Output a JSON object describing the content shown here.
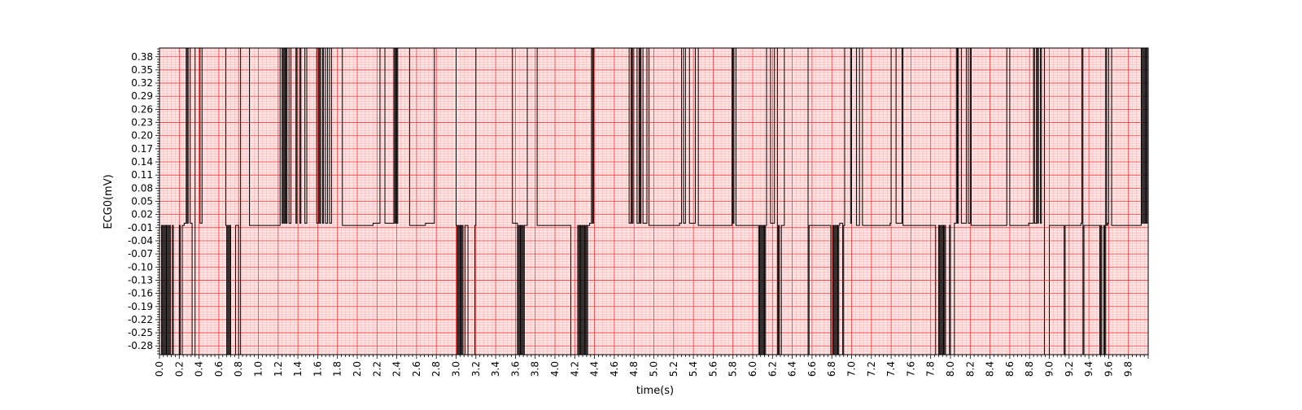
{
  "chart_data": {
    "type": "line",
    "title": "",
    "xlabel": "time(s)",
    "ylabel": "ECG0(mV)",
    "xlim": [
      0,
      10
    ],
    "ylim": [
      -0.3,
      0.4
    ],
    "grid": true,
    "grid_color_major": "#ff3333",
    "grid_color_minor": "#ffb0b0",
    "background": "#ffe6e6",
    "line_color": "#000000",
    "x_ticks": [
      "0.0",
      "0.2",
      "0.4",
      "0.6",
      "0.8",
      "1.0",
      "1.2",
      "1.4",
      "1.6",
      "1.8",
      "2.0",
      "2.2",
      "2.4",
      "2.6",
      "2.8",
      "3.0",
      "3.2",
      "3.4",
      "3.6",
      "3.8",
      "4.0",
      "4.2",
      "4.4",
      "4.6",
      "4.8",
      "5.0",
      "5.2",
      "5.4",
      "5.6",
      "5.8",
      "6.0",
      "6.2",
      "6.4",
      "6.6",
      "6.8",
      "7.0",
      "7.2",
      "7.4",
      "7.6",
      "7.8",
      "8.0",
      "8.2",
      "8.4",
      "8.6",
      "8.8",
      "9.0",
      "9.2",
      "9.4",
      "9.6",
      "9.8"
    ],
    "y_ticks": [
      "-0.28",
      "-0.25",
      "-0.22",
      "-0.19",
      "-0.16",
      "-0.13",
      "-0.10",
      "-0.07",
      "-0.04",
      "-0.01",
      "0.02",
      "0.05",
      "0.08",
      "0.11",
      "0.14",
      "0.17",
      "0.20",
      "0.23",
      "0.26",
      "0.29",
      "0.32",
      "0.35",
      "0.38"
    ],
    "levels": {
      "high": 0.4,
      "mid_high": 0.0,
      "mid_low": -0.005,
      "low": -0.3
    },
    "series": [
      {
        "segments": [
          [
            0.0,
            "low"
          ],
          [
            0.02,
            "mid_low"
          ],
          [
            0.03,
            "low"
          ],
          [
            0.04,
            "mid_low"
          ],
          [
            0.05,
            "low"
          ],
          [
            0.06,
            "mid_low"
          ],
          [
            0.07,
            "low"
          ],
          [
            0.08,
            "mid_low"
          ],
          [
            0.09,
            "low"
          ],
          [
            0.1,
            "mid_low"
          ],
          [
            0.11,
            "low"
          ],
          [
            0.13,
            "mid_low"
          ],
          [
            0.14,
            "low"
          ],
          [
            0.2,
            "mid_low"
          ],
          [
            0.21,
            "low"
          ],
          [
            0.23,
            "mid_low"
          ],
          [
            0.25,
            "mid_high"
          ],
          [
            0.27,
            "high"
          ],
          [
            0.28,
            "mid_high"
          ],
          [
            0.29,
            "high"
          ],
          [
            0.31,
            "mid_high"
          ],
          [
            0.33,
            "low"
          ],
          [
            0.36,
            "high"
          ],
          [
            0.41,
            "mid_high"
          ],
          [
            0.43,
            "high"
          ],
          [
            0.67,
            "mid_low"
          ],
          [
            0.68,
            "low"
          ],
          [
            0.69,
            "mid_low"
          ],
          [
            0.7,
            "low"
          ],
          [
            0.71,
            "mid_low"
          ],
          [
            0.72,
            "low"
          ],
          [
            0.77,
            "mid_low"
          ],
          [
            0.8,
            "low"
          ],
          [
            0.82,
            "high"
          ],
          [
            0.91,
            "mid_low"
          ],
          [
            1.22,
            "high"
          ],
          [
            1.24,
            "mid_high"
          ],
          [
            1.25,
            "high"
          ],
          [
            1.26,
            "mid_high"
          ],
          [
            1.27,
            "high"
          ],
          [
            1.28,
            "mid_high"
          ],
          [
            1.29,
            "high"
          ],
          [
            1.31,
            "mid_high"
          ],
          [
            1.33,
            "high"
          ],
          [
            1.38,
            "mid_high"
          ],
          [
            1.39,
            "high"
          ],
          [
            1.42,
            "mid_high"
          ],
          [
            1.43,
            "high"
          ],
          [
            1.47,
            "mid_high"
          ],
          [
            1.49,
            "high"
          ],
          [
            1.59,
            "mid_high"
          ],
          [
            1.61,
            "high"
          ],
          [
            1.62,
            "mid_high"
          ],
          [
            1.63,
            "high"
          ],
          [
            1.65,
            "mid_high"
          ],
          [
            1.66,
            "high"
          ],
          [
            1.68,
            "mid_high"
          ],
          [
            1.7,
            "high"
          ],
          [
            1.72,
            "mid_high"
          ],
          [
            1.74,
            "high"
          ],
          [
            1.85,
            "mid_low"
          ],
          [
            2.16,
            "mid_high"
          ],
          [
            2.23,
            "high"
          ],
          [
            2.28,
            "mid_high"
          ],
          [
            2.37,
            "high"
          ],
          [
            2.38,
            "mid_high"
          ],
          [
            2.39,
            "high"
          ],
          [
            2.4,
            "mid_high"
          ],
          [
            2.41,
            "high"
          ],
          [
            2.53,
            "mid_low"
          ],
          [
            2.69,
            "mid_high"
          ],
          [
            2.78,
            "high"
          ],
          [
            3.0,
            "mid_low"
          ],
          [
            3.01,
            "low"
          ],
          [
            3.02,
            "mid_low"
          ],
          [
            3.03,
            "low"
          ],
          [
            3.04,
            "mid_low"
          ],
          [
            3.05,
            "low"
          ],
          [
            3.06,
            "mid_low"
          ],
          [
            3.07,
            "low"
          ],
          [
            3.09,
            "mid_low"
          ],
          [
            3.12,
            "low"
          ],
          [
            3.19,
            "mid_low"
          ],
          [
            3.2,
            "high"
          ],
          [
            3.57,
            "mid_high"
          ],
          [
            3.62,
            "low"
          ],
          [
            3.63,
            "mid_low"
          ],
          [
            3.64,
            "low"
          ],
          [
            3.65,
            "mid_low"
          ],
          [
            3.66,
            "low"
          ],
          [
            3.67,
            "mid_low"
          ],
          [
            3.68,
            "low"
          ],
          [
            3.69,
            "mid_low"
          ],
          [
            3.72,
            "high"
          ],
          [
            3.82,
            "mid_low"
          ],
          [
            4.16,
            "low"
          ],
          [
            4.23,
            "mid_low"
          ],
          [
            4.24,
            "low"
          ],
          [
            4.25,
            "mid_low"
          ],
          [
            4.26,
            "low"
          ],
          [
            4.27,
            "mid_low"
          ],
          [
            4.28,
            "low"
          ],
          [
            4.29,
            "mid_low"
          ],
          [
            4.3,
            "low"
          ],
          [
            4.31,
            "mid_low"
          ],
          [
            4.32,
            "low"
          ],
          [
            4.33,
            "mid_low"
          ],
          [
            4.35,
            "mid_high"
          ],
          [
            4.37,
            "high"
          ],
          [
            4.38,
            "mid_high"
          ],
          [
            4.39,
            "high"
          ],
          [
            4.75,
            "mid_high"
          ],
          [
            4.77,
            "high"
          ],
          [
            4.78,
            "mid_high"
          ],
          [
            4.79,
            "high"
          ],
          [
            4.83,
            "mid_high"
          ],
          [
            4.85,
            "high"
          ],
          [
            4.86,
            "mid_high"
          ],
          [
            4.87,
            "high"
          ],
          [
            4.89,
            "mid_high"
          ],
          [
            4.93,
            "high"
          ],
          [
            4.95,
            "mid_low"
          ],
          [
            5.26,
            "mid_high"
          ],
          [
            5.28,
            "high"
          ],
          [
            5.3,
            "mid_high"
          ],
          [
            5.32,
            "high"
          ],
          [
            5.36,
            "mid_high"
          ],
          [
            5.42,
            "high"
          ],
          [
            5.45,
            "mid_low"
          ],
          [
            5.79,
            "high"
          ],
          [
            5.8,
            "mid_high"
          ],
          [
            5.81,
            "high"
          ],
          [
            5.83,
            "mid_low"
          ],
          [
            6.06,
            "low"
          ],
          [
            6.07,
            "mid_low"
          ],
          [
            6.08,
            "low"
          ],
          [
            6.09,
            "mid_low"
          ],
          [
            6.1,
            "low"
          ],
          [
            6.11,
            "mid_low"
          ],
          [
            6.12,
            "low"
          ],
          [
            6.13,
            "mid_low"
          ],
          [
            6.14,
            "high"
          ],
          [
            6.18,
            "mid_high"
          ],
          [
            6.22,
            "high"
          ],
          [
            6.25,
            "low"
          ],
          [
            6.26,
            "mid_low"
          ],
          [
            6.27,
            "low"
          ],
          [
            6.29,
            "mid_low"
          ],
          [
            6.32,
            "high"
          ],
          [
            6.56,
            "low"
          ],
          [
            6.57,
            "mid_low"
          ],
          [
            6.79,
            "low"
          ],
          [
            6.81,
            "mid_low"
          ],
          [
            6.82,
            "low"
          ],
          [
            6.83,
            "mid_low"
          ],
          [
            6.84,
            "low"
          ],
          [
            6.85,
            "mid_low"
          ],
          [
            6.86,
            "low"
          ],
          [
            6.87,
            "mid_low"
          ],
          [
            6.88,
            "mid_high"
          ],
          [
            6.91,
            "low"
          ],
          [
            6.92,
            "mid_low"
          ],
          [
            6.93,
            "high"
          ],
          [
            6.99,
            "mid_high"
          ],
          [
            7.0,
            "high"
          ],
          [
            7.05,
            "mid_low"
          ],
          [
            7.08,
            "high"
          ],
          [
            7.11,
            "mid_low"
          ],
          [
            7.39,
            "mid_high"
          ],
          [
            7.4,
            "high"
          ],
          [
            7.45,
            "mid_high"
          ],
          [
            7.51,
            "high"
          ],
          [
            7.52,
            "mid_low"
          ],
          [
            7.85,
            "low"
          ],
          [
            7.88,
            "mid_low"
          ],
          [
            7.89,
            "low"
          ],
          [
            7.9,
            "mid_low"
          ],
          [
            7.91,
            "low"
          ],
          [
            7.92,
            "mid_low"
          ],
          [
            7.93,
            "low"
          ],
          [
            7.94,
            "mid_low"
          ],
          [
            7.95,
            "low"
          ],
          [
            7.99,
            "mid_low"
          ],
          [
            8.0,
            "low"
          ],
          [
            8.04,
            "mid_high"
          ],
          [
            8.06,
            "high"
          ],
          [
            8.07,
            "mid_high"
          ],
          [
            8.08,
            "high"
          ],
          [
            8.11,
            "mid_high"
          ],
          [
            8.16,
            "high"
          ],
          [
            8.18,
            "mid_high"
          ],
          [
            8.2,
            "high"
          ],
          [
            8.21,
            "mid_low"
          ],
          [
            8.57,
            "high"
          ],
          [
            8.6,
            "mid_low"
          ],
          [
            8.79,
            "mid_high"
          ],
          [
            8.84,
            "high"
          ],
          [
            8.85,
            "mid_high"
          ],
          [
            8.87,
            "high"
          ],
          [
            8.88,
            "mid_high"
          ],
          [
            8.89,
            "high"
          ],
          [
            8.91,
            "mid_high"
          ],
          [
            8.92,
            "high"
          ],
          [
            8.95,
            "low"
          ],
          [
            9.0,
            "mid_low"
          ],
          [
            9.15,
            "low"
          ],
          [
            9.16,
            "mid_low"
          ],
          [
            9.32,
            "mid_high"
          ],
          [
            9.33,
            "high"
          ],
          [
            9.34,
            "low"
          ],
          [
            9.35,
            "mid_low"
          ],
          [
            9.51,
            "low"
          ],
          [
            9.52,
            "mid_low"
          ],
          [
            9.53,
            "low"
          ],
          [
            9.55,
            "mid_low"
          ],
          [
            9.56,
            "low"
          ],
          [
            9.57,
            "high"
          ],
          [
            9.58,
            "mid_low"
          ],
          [
            9.59,
            "mid_high"
          ],
          [
            9.6,
            "high"
          ],
          [
            9.63,
            "mid_low"
          ],
          [
            9.93,
            "high"
          ],
          [
            9.94,
            "mid_high"
          ],
          [
            9.95,
            "high"
          ],
          [
            9.96,
            "mid_high"
          ],
          [
            9.97,
            "high"
          ],
          [
            9.98,
            "mid_high"
          ],
          [
            9.99,
            "high"
          ],
          [
            10.0,
            "mid_high"
          ]
        ]
      }
    ]
  }
}
